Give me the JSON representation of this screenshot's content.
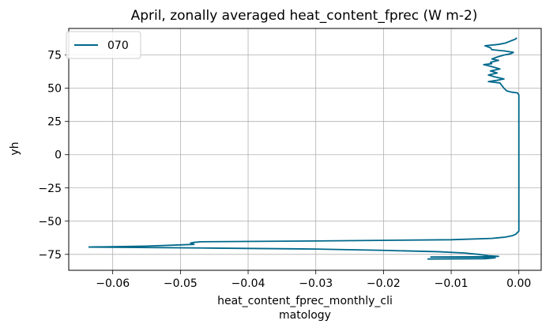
{
  "chart_data": {
    "type": "line",
    "title": "April, zonally averaged heat_content_fprec (W m-2)",
    "xlabel_lines": [
      "heat_content_fprec_monthly_cli",
      "matology"
    ],
    "ylabel": "yh",
    "xlim": [
      -0.0665,
      0.0033
    ],
    "ylim": [
      -87,
      95
    ],
    "xticks": [
      -0.06,
      -0.05,
      -0.04,
      -0.03,
      -0.02,
      -0.01,
      0.0
    ],
    "xtick_labels": [
      "−0.06",
      "−0.05",
      "−0.04",
      "−0.03",
      "−0.02",
      "−0.01",
      "0.00"
    ],
    "yticks": [
      -75,
      -50,
      -25,
      0,
      25,
      50,
      75
    ],
    "ytick_labels": [
      "−75",
      "−50",
      "−25",
      "0",
      "25",
      "50",
      "75"
    ],
    "grid": true,
    "legend_position": "top-left",
    "series": [
      {
        "name": "070",
        "color": "#00688b",
        "points": [
          [
            -0.0135,
            -78.5
          ],
          [
            -0.005,
            -78.3
          ],
          [
            -0.0035,
            -77.6
          ],
          [
            -0.0055,
            -77.2
          ],
          [
            -0.013,
            -77.0
          ],
          [
            -0.0065,
            -76.8
          ],
          [
            -0.003,
            -76.5
          ],
          [
            -0.0045,
            -76.0
          ],
          [
            -0.006,
            -75.0
          ],
          [
            -0.008,
            -74.0
          ],
          [
            -0.012,
            -73.0
          ],
          [
            -0.02,
            -72.0
          ],
          [
            -0.03,
            -71.0
          ],
          [
            -0.045,
            -70.3
          ],
          [
            -0.0635,
            -69.5
          ],
          [
            -0.055,
            -68.8
          ],
          [
            -0.048,
            -67.5
          ],
          [
            -0.0485,
            -66.5
          ],
          [
            -0.048,
            -66.0
          ],
          [
            -0.047,
            -65.5
          ],
          [
            -0.03,
            -64.9
          ],
          [
            -0.01,
            -64.0
          ],
          [
            -0.004,
            -63.0
          ],
          [
            -0.002,
            -62.0
          ],
          [
            -0.001,
            -61.0
          ],
          [
            -0.0005,
            -60.0
          ],
          [
            -0.0003,
            -59.0
          ],
          [
            0.0,
            -57.5
          ],
          [
            0.0,
            -40.0
          ],
          [
            0.0,
            0.0
          ],
          [
            0.0,
            40.0
          ],
          [
            0.0,
            45.0
          ],
          [
            -0.0002,
            46.5
          ],
          [
            -0.001,
            47.0
          ],
          [
            -0.0018,
            48.0
          ],
          [
            -0.0022,
            50.0
          ],
          [
            -0.0025,
            52.0
          ],
          [
            -0.0028,
            54.0
          ],
          [
            -0.0045,
            55.0
          ],
          [
            -0.0032,
            56.0
          ],
          [
            -0.0022,
            57.0
          ],
          [
            -0.0035,
            58.5
          ],
          [
            -0.0045,
            60.0
          ],
          [
            -0.0032,
            61.5
          ],
          [
            -0.0042,
            63.0
          ],
          [
            -0.0028,
            64.5
          ],
          [
            -0.0038,
            66.0
          ],
          [
            -0.0045,
            67.0
          ],
          [
            -0.0052,
            67.8
          ],
          [
            -0.004,
            68.5
          ],
          [
            -0.0042,
            69.5
          ],
          [
            -0.003,
            71.0
          ],
          [
            -0.004,
            72.0
          ],
          [
            -0.0032,
            73.5
          ],
          [
            -0.0022,
            75.0
          ],
          [
            -0.0012,
            76.0
          ],
          [
            -0.0008,
            77.0
          ],
          [
            -0.002,
            78.0
          ],
          [
            -0.004,
            79.0
          ],
          [
            -0.0042,
            80.5
          ],
          [
            -0.005,
            82.0
          ],
          [
            -0.003,
            83.0
          ],
          [
            -0.002,
            84.0
          ],
          [
            -0.0015,
            85.0
          ],
          [
            -0.001,
            86.0
          ],
          [
            -0.0005,
            87.0
          ],
          [
            -0.0003,
            88.0
          ]
        ]
      }
    ]
  }
}
